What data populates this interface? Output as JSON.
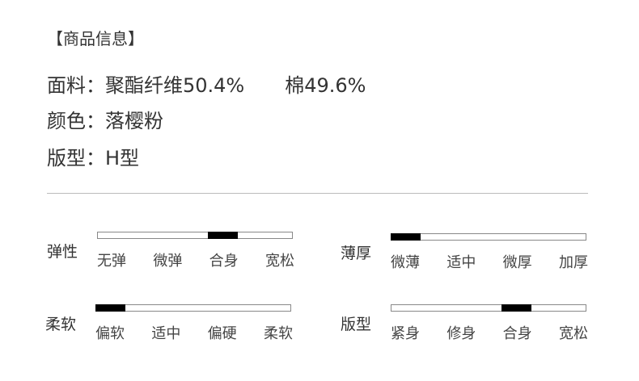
{
  "title": "【商品信息】",
  "specs": {
    "fabric_label": "面料：",
    "fabric_value": "聚酯纤维50.4%",
    "fabric_value2": "棉49.6%",
    "color_label": "颜色：",
    "color_value": "落樱粉",
    "fit_label": "版型：",
    "fit_value": "H型"
  },
  "scales": [
    {
      "name": "弹性",
      "options": [
        "无弹",
        "微弹",
        "合身",
        "宽松"
      ],
      "selected_index": 2
    },
    {
      "name": "薄厚",
      "options": [
        "微薄",
        "适中",
        "微厚",
        "加厚"
      ],
      "selected_index": 0
    },
    {
      "name": "柔软",
      "options": [
        "偏软",
        "适中",
        "偏硬",
        "柔软"
      ],
      "selected_index": 0
    },
    {
      "name": "版型",
      "options": [
        "紧身",
        "修身",
        "合身",
        "宽松"
      ],
      "selected_index": 2
    }
  ]
}
